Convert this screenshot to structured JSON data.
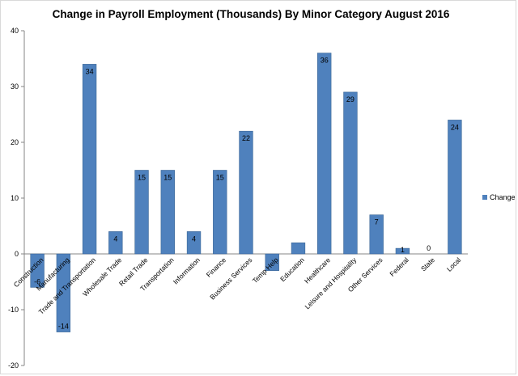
{
  "chart_data": {
    "type": "bar",
    "title": "Change in Payroll Employment (Thousands) By Minor Category August 2016",
    "xlabel": "",
    "ylabel": "",
    "ylim": [
      -20,
      40
    ],
    "yticks": [
      -20,
      -10,
      0,
      10,
      20,
      30,
      40
    ],
    "grid": false,
    "legend_position": "right",
    "series": [
      {
        "name": "Change",
        "color": "#4f81bd",
        "values": [
          -6,
          -14,
          34,
          4,
          15,
          15,
          4,
          15,
          22,
          -3,
          2,
          36,
          29,
          7,
          1,
          0,
          24
        ],
        "data_labels": [
          "-6",
          "-14",
          "34",
          "4",
          "15",
          "15",
          "4",
          "15",
          "22",
          "",
          "",
          "36",
          "29",
          "7",
          "1",
          "0",
          "24"
        ]
      }
    ],
    "categories": [
      "Construction",
      "Manufacturing",
      "Trade and Transportation",
      "Wholesale Trade",
      "Retail Trade",
      "Transportation",
      "Information",
      "Finance",
      "Business Services",
      "Temp Help",
      "Education",
      "Healthcare",
      "Leisure and Hospitality",
      "Other Services",
      "Federal",
      "State",
      "Local"
    ]
  }
}
